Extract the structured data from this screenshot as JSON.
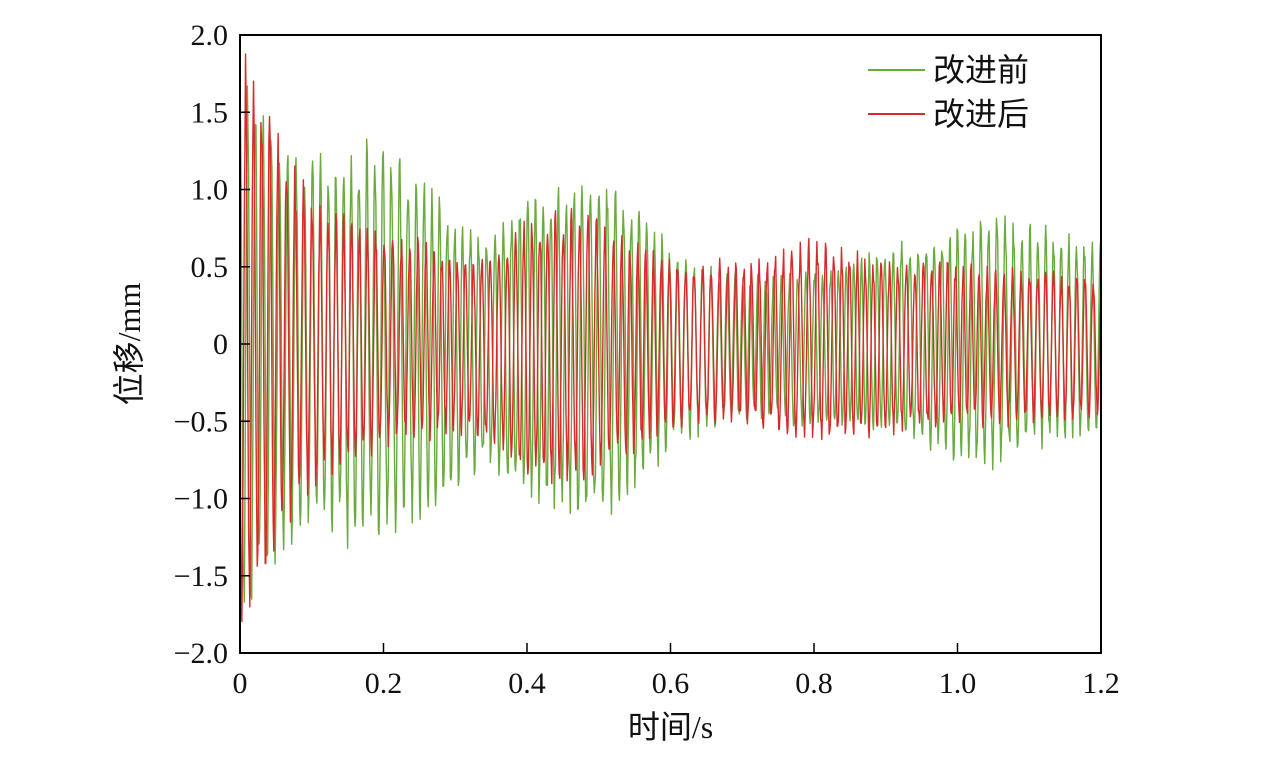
{
  "chart_data": {
    "type": "line",
    "title": "",
    "xlabel": "时间/s",
    "ylabel": "位移/mm",
    "xlim": [
      0,
      1.2
    ],
    "ylim": [
      -2.0,
      2.0
    ],
    "x_ticks": [
      0,
      0.2,
      0.4,
      0.6,
      0.8,
      1.0,
      1.2
    ],
    "x_tick_labels": [
      "0",
      "0.2",
      "0.4",
      "0.6",
      "0.8",
      "1.0",
      "1.2"
    ],
    "y_ticks": [
      2.0,
      1.5,
      1.0,
      0.5,
      0,
      -0.5,
      -1.0,
      -1.5,
      -2.0
    ],
    "y_tick_labels": [
      "2.0",
      "1.5",
      "1.0",
      "0.5",
      "0",
      "−0.5",
      "−1.0",
      "−1.5",
      "−2.0"
    ],
    "grid": false,
    "legend_position": "top-right",
    "series": [
      {
        "name": "改进前",
        "color": "#6aab3d",
        "envelope": {
          "x": [
            0,
            0.02,
            0.05,
            0.08,
            0.1,
            0.15,
            0.2,
            0.25,
            0.3,
            0.35,
            0.4,
            0.45,
            0.5,
            0.55,
            0.6,
            0.7,
            0.8,
            0.9,
            1.0,
            1.05,
            1.1,
            1.2
          ],
          "max": [
            1.9,
            1.7,
            1.45,
            1.3,
            1.25,
            1.3,
            1.4,
            1.15,
            0.85,
            0.75,
            1.0,
            1.05,
            1.15,
            0.95,
            0.65,
            0.45,
            0.5,
            0.65,
            0.8,
            0.9,
            0.8,
            0.7
          ],
          "min": [
            -1.95,
            -1.7,
            -1.45,
            -1.3,
            -1.2,
            -1.35,
            -1.3,
            -1.2,
            -1.0,
            -0.85,
            -1.1,
            -1.15,
            -1.2,
            -1.0,
            -0.7,
            -0.5,
            -0.55,
            -0.6,
            -0.8,
            -0.85,
            -0.7,
            -0.6
          ]
        }
      },
      {
        "name": "改进后",
        "color": "#d62b2b",
        "envelope": {
          "x": [
            0,
            0.02,
            0.05,
            0.08,
            0.1,
            0.15,
            0.2,
            0.25,
            0.3,
            0.35,
            0.4,
            0.45,
            0.5,
            0.55,
            0.6,
            0.7,
            0.8,
            0.9,
            1.0,
            1.05,
            1.1,
            1.2
          ],
          "max": [
            1.95,
            1.8,
            1.45,
            1.15,
            1.0,
            0.85,
            0.8,
            0.7,
            0.6,
            0.6,
            0.85,
            0.9,
            0.85,
            0.7,
            0.6,
            0.55,
            0.7,
            0.55,
            0.55,
            0.5,
            0.5,
            0.45
          ],
          "min": [
            -1.9,
            -1.75,
            -1.45,
            -1.1,
            -1.0,
            -0.8,
            -0.7,
            -0.65,
            -0.6,
            -0.65,
            -0.9,
            -0.95,
            -0.9,
            -0.75,
            -0.55,
            -0.55,
            -0.65,
            -0.6,
            -0.55,
            -0.55,
            -0.55,
            -0.5
          ]
        }
      }
    ]
  }
}
